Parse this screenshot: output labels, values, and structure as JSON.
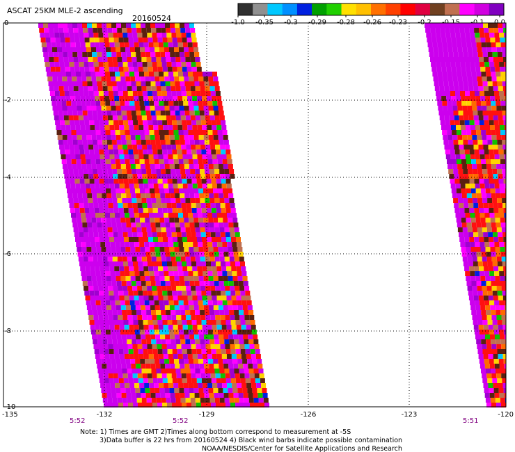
{
  "title": "ASCAT 25KM MLE-2 ascending",
  "date": "20160524",
  "colorbar": {
    "colors": [
      "#303030",
      "#909090",
      "#00c8ff",
      "#0090ff",
      "#0020e0",
      "#00a000",
      "#20d000",
      "#ffe000",
      "#ffc000",
      "#ff7000",
      "#ff4000",
      "#ff0000",
      "#e00040",
      "#704020",
      "#c07050",
      "#ff00ff",
      "#d000e0",
      "#8000c0"
    ],
    "tick_labels": [
      "-1.0",
      "-0.35",
      "-0.3",
      "-0.29",
      "-0.28",
      "-0.26",
      "-0.23",
      "-0.2",
      "-0.15",
      "-0.1",
      "0.0"
    ]
  },
  "axes": {
    "x_ticks": [
      "-135",
      "-132",
      "-129",
      "-126",
      "-123",
      "-120"
    ],
    "y_ticks": [
      "0",
      "-2",
      "-4",
      "-6",
      "-8",
      "-10"
    ]
  },
  "times": [
    "5:52",
    "5:52",
    "5:51"
  ],
  "notes": {
    "line1": "Note: 1) Times are GMT 2)Times along bottom correspond to measurement at -5S",
    "line2": "3)Data buffer is 22 hrs from 20160524 4) Black wind barbs indicate possible contamination",
    "line3": "NOAA/NESDIS/Center for Satellite Applications and Research"
  },
  "legend_colors": {
    "background_data": "#cc00ee",
    "purple": "#a000d0",
    "red": "#ff1010",
    "orange": "#ff6a00",
    "yellow": "#ffd200",
    "brown": "#5a2010",
    "tan": "#c07050",
    "magenta": "#ff00ff",
    "green": "#10c000",
    "cyan": "#00c8ff",
    "blue": "#0020e0"
  }
}
